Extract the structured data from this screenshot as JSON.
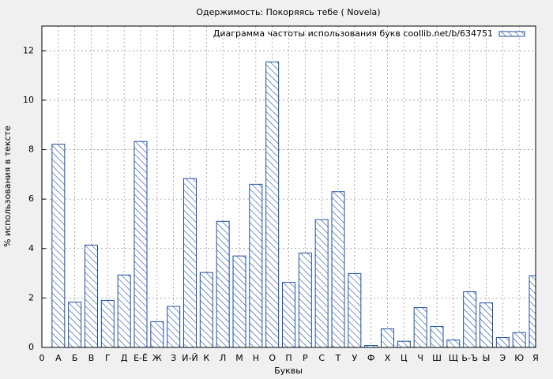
{
  "chart_data": {
    "type": "bar",
    "title": "Одержимость: Покоряясь тебе ( Novela)",
    "x_label": "Буквы",
    "y_label": "% использования в тексте",
    "categories": [
      "0",
      "А",
      "Б",
      "В",
      "Г",
      "Д",
      "Е-Ё",
      "Ж",
      "З",
      "И-Й",
      "К",
      "Л",
      "М",
      "Н",
      "О",
      "П",
      "Р",
      "С",
      "Т",
      "У",
      "Ф",
      "Х",
      "Ц",
      "Ч",
      "Ш",
      "Щ",
      "Ь-Ъ",
      "Ы",
      "Э",
      "Ю",
      "Я"
    ],
    "series": [
      {
        "name": "Диаграмма частоты использования букв coollib.net/b/634751",
        "color": "#1f4fa0",
        "values": [
          null,
          8.22,
          1.83,
          4.14,
          1.9,
          2.93,
          8.33,
          1.04,
          1.66,
          6.83,
          3.03,
          5.1,
          3.7,
          6.6,
          11.55,
          2.63,
          3.82,
          5.17,
          6.3,
          2.99,
          0.08,
          0.75,
          0.25,
          1.61,
          0.85,
          0.3,
          2.25,
          1.8,
          0.4,
          0.6,
          2.9
        ]
      }
    ],
    "ylim": [
      0,
      13
    ],
    "yticks": [
      0,
      2,
      4,
      6,
      8,
      10,
      12
    ],
    "grid": true,
    "legend": "top-right"
  }
}
